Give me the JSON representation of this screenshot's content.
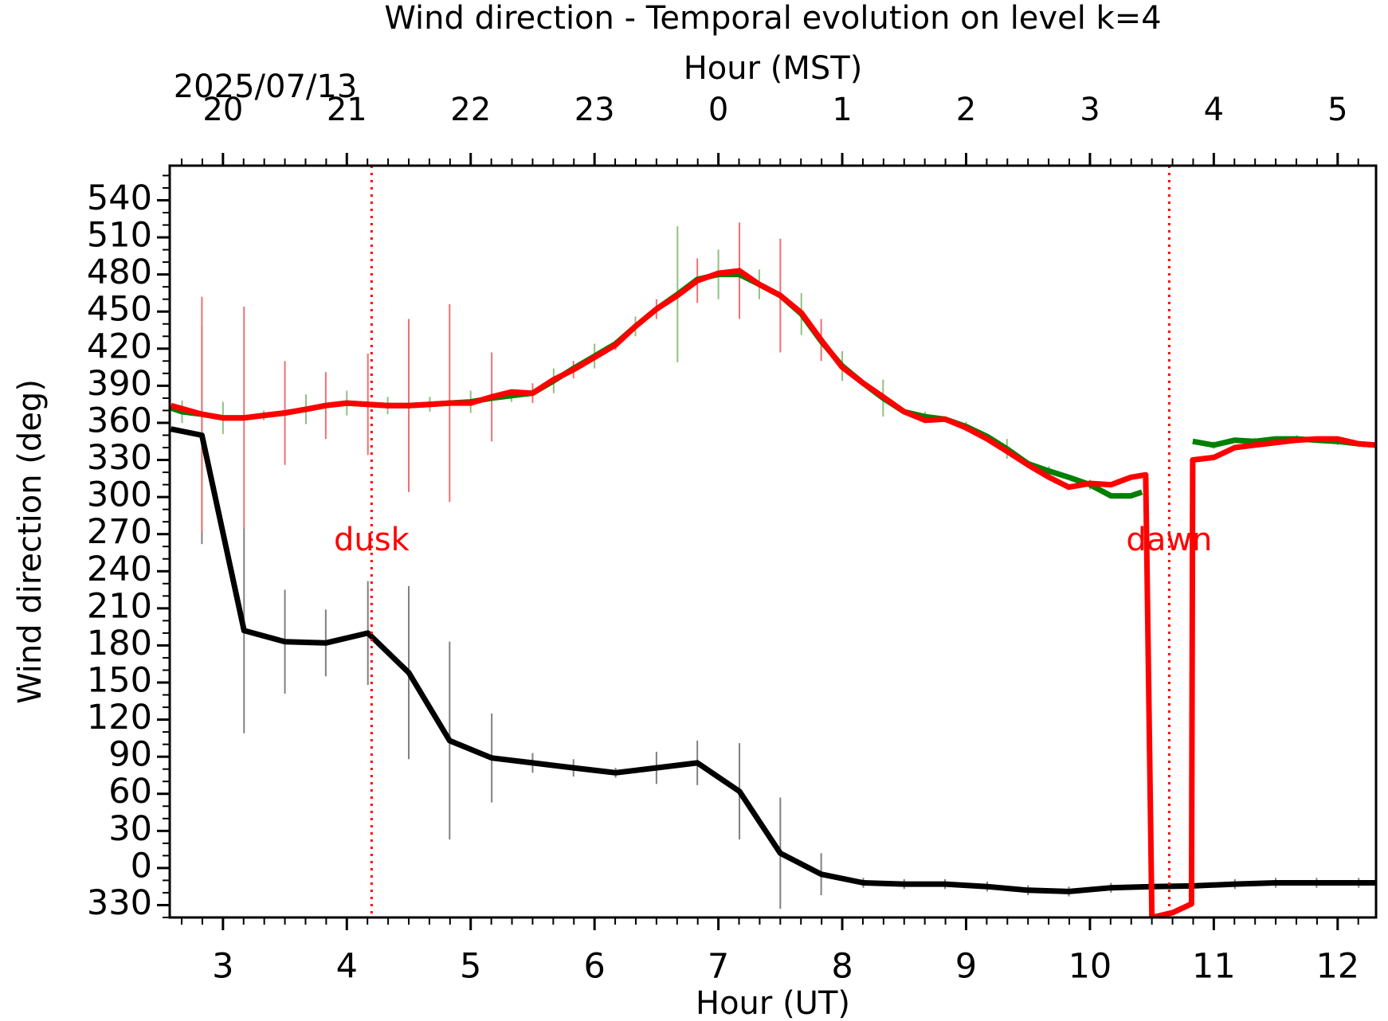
{
  "chart_data": {
    "type": "line",
    "title": "Wind direction - Temporal evolution on level k=4",
    "xlabel": "Hour (UT)",
    "x2label": "Hour (MST)",
    "date_label": "2025/07/13",
    "ylabel": "Wind direction (deg)",
    "xlim": [
      2.57,
      12.31
    ],
    "ylim": [
      -40,
      568
    ],
    "xticks": [
      3,
      4,
      5,
      6,
      7,
      8,
      9,
      10,
      11,
      12
    ],
    "x2ticks": [
      {
        "value": 3,
        "label": "20"
      },
      {
        "value": 4,
        "label": "21"
      },
      {
        "value": 5,
        "label": "22"
      },
      {
        "value": 6,
        "label": "23"
      },
      {
        "value": 7,
        "label": "0"
      },
      {
        "value": 8,
        "label": "1"
      },
      {
        "value": 9,
        "label": "2"
      },
      {
        "value": 10,
        "label": "3"
      },
      {
        "value": 11,
        "label": "4"
      },
      {
        "value": 12,
        "label": "5"
      }
    ],
    "yticks": [
      {
        "value": -30,
        "label": "330"
      },
      0,
      30,
      60,
      90,
      120,
      150,
      180,
      210,
      240,
      270,
      300,
      330,
      360,
      390,
      420,
      450,
      480,
      510,
      540
    ],
    "x_minor_per_major": 6,
    "y_minor_per_major": 3,
    "annotations": [
      {
        "text": "dusk",
        "x": 4.2,
        "color": "#ff0000"
      },
      {
        "text": "dawn",
        "x": 10.64,
        "color": "#ff0000"
      }
    ],
    "series": [
      {
        "color": "#000000",
        "error_color": "#808080",
        "x": [
          2.58,
          2.83,
          3.17,
          3.5,
          3.83,
          4.17,
          4.5,
          4.83,
          5.17,
          5.5,
          5.83,
          6.17,
          6.5,
          6.83,
          7.17,
          7.5,
          7.83,
          8.17,
          8.5,
          8.83,
          9.17,
          9.5,
          9.83,
          10.17,
          10.5,
          10.83,
          11.17,
          11.5,
          11.83,
          12.17,
          12.31
        ],
        "values": [
          355,
          350,
          192,
          183,
          182,
          190,
          158,
          103,
          89,
          85,
          81,
          77,
          81,
          85,
          62,
          12,
          -5,
          -12,
          -13,
          -13,
          -15,
          -18,
          -19,
          -16,
          -15,
          -14.5,
          -13,
          -12,
          -12,
          -12,
          -12
        ],
        "errors": [
          null,
          88,
          83,
          42,
          27,
          42,
          70,
          80,
          36,
          8,
          7,
          4,
          13,
          18,
          39,
          45,
          17,
          4,
          4,
          4,
          4,
          4,
          4,
          4,
          4,
          4,
          4,
          4,
          4,
          4,
          4
        ]
      },
      {
        "color": "#008000",
        "error_color": "#90c080",
        "x": [
          2.58,
          2.67,
          2.83,
          3.0,
          3.17,
          3.33,
          3.5,
          3.67,
          3.83,
          4.0,
          4.17,
          4.33,
          4.5,
          4.67,
          4.83,
          5.0,
          5.17,
          5.33,
          5.5,
          5.67,
          5.83,
          6.0,
          6.17,
          6.33,
          6.5,
          6.67,
          6.83,
          7.0,
          7.17,
          7.33,
          7.5,
          7.67,
          7.83,
          8.0,
          8.17,
          8.33,
          8.5,
          8.67,
          8.83,
          9.0,
          9.17,
          9.33,
          9.5,
          9.67,
          9.83,
          10.0,
          10.17,
          10.33,
          10.42,
          10.67,
          10.83,
          11.0,
          11.17,
          11.33,
          11.5,
          11.67,
          11.83,
          12.0,
          12.17,
          12.31
        ],
        "values": [
          372,
          369,
          367,
          364,
          364,
          366,
          368,
          371,
          374,
          376,
          375,
          374,
          374,
          375,
          376,
          377,
          380,
          382,
          384,
          394,
          404,
          414,
          424,
          438,
          452,
          464,
          476,
          480,
          480,
          472,
          463,
          448,
          426,
          406,
          392,
          380,
          369,
          365,
          363,
          357,
          349,
          339,
          327,
          321,
          316,
          310,
          301,
          301,
          304,
          null,
          345,
          342,
          346,
          345,
          347,
          347,
          346,
          345,
          343,
          342
        ],
        "errors": [
          null,
          9,
          null,
          13,
          null,
          4,
          null,
          12,
          null,
          10,
          null,
          7,
          null,
          6,
          null,
          9,
          null,
          5,
          null,
          10,
          null,
          10,
          null,
          8,
          null,
          55,
          null,
          20,
          null,
          12,
          null,
          17,
          null,
          12,
          null,
          15,
          null,
          4,
          null,
          4,
          null,
          8,
          null,
          4,
          null,
          4,
          null,
          null,
          null,
          null,
          null,
          3,
          null,
          3,
          null,
          3,
          null,
          3,
          null,
          null
        ]
      },
      {
        "color": "#ff0000",
        "error_color": "#f07070",
        "x": [
          2.58,
          2.83,
          3.0,
          3.17,
          3.33,
          3.5,
          3.67,
          3.83,
          4.0,
          4.17,
          4.33,
          4.5,
          4.67,
          4.83,
          5.0,
          5.17,
          5.33,
          5.5,
          5.67,
          5.83,
          6.0,
          6.17,
          6.33,
          6.5,
          6.67,
          6.83,
          7.0,
          7.17,
          7.33,
          7.5,
          7.67,
          7.83,
          8.0,
          8.17,
          8.33,
          8.5,
          8.67,
          8.83,
          9.0,
          9.17,
          9.33,
          9.5,
          9.67,
          9.83,
          10.0,
          10.17,
          10.33,
          10.45,
          10.5,
          10.67,
          10.82,
          10.83,
          11.0,
          11.17,
          11.33,
          11.5,
          11.67,
          11.83,
          12.0,
          12.17,
          12.31
        ],
        "values": [
          374,
          367,
          364,
          364,
          366,
          368,
          371,
          374,
          376,
          375,
          374,
          374,
          375,
          376,
          376,
          381,
          385,
          384,
          395,
          403,
          413,
          423,
          438,
          452,
          463,
          475,
          481,
          483,
          472,
          463,
          449,
          427,
          405,
          392,
          381,
          369,
          362,
          363,
          356,
          347,
          337,
          326,
          316,
          308,
          311,
          310,
          316,
          318,
          -40,
          -36,
          -29,
          330,
          332,
          340,
          342,
          344,
          346,
          347,
          347,
          343,
          342
        ],
        "errors": [
          null,
          95,
          null,
          90,
          null,
          42,
          null,
          27,
          null,
          41,
          null,
          70,
          null,
          80,
          null,
          36,
          null,
          8,
          null,
          7,
          null,
          4,
          null,
          8,
          null,
          18,
          null,
          39,
          null,
          46,
          null,
          17,
          null,
          null,
          null,
          null,
          null,
          null,
          null,
          null,
          null,
          null,
          null,
          null,
          null,
          null,
          null,
          null,
          null,
          null,
          null,
          null,
          null,
          null,
          null,
          null,
          null,
          null,
          null,
          null,
          null
        ]
      }
    ]
  }
}
